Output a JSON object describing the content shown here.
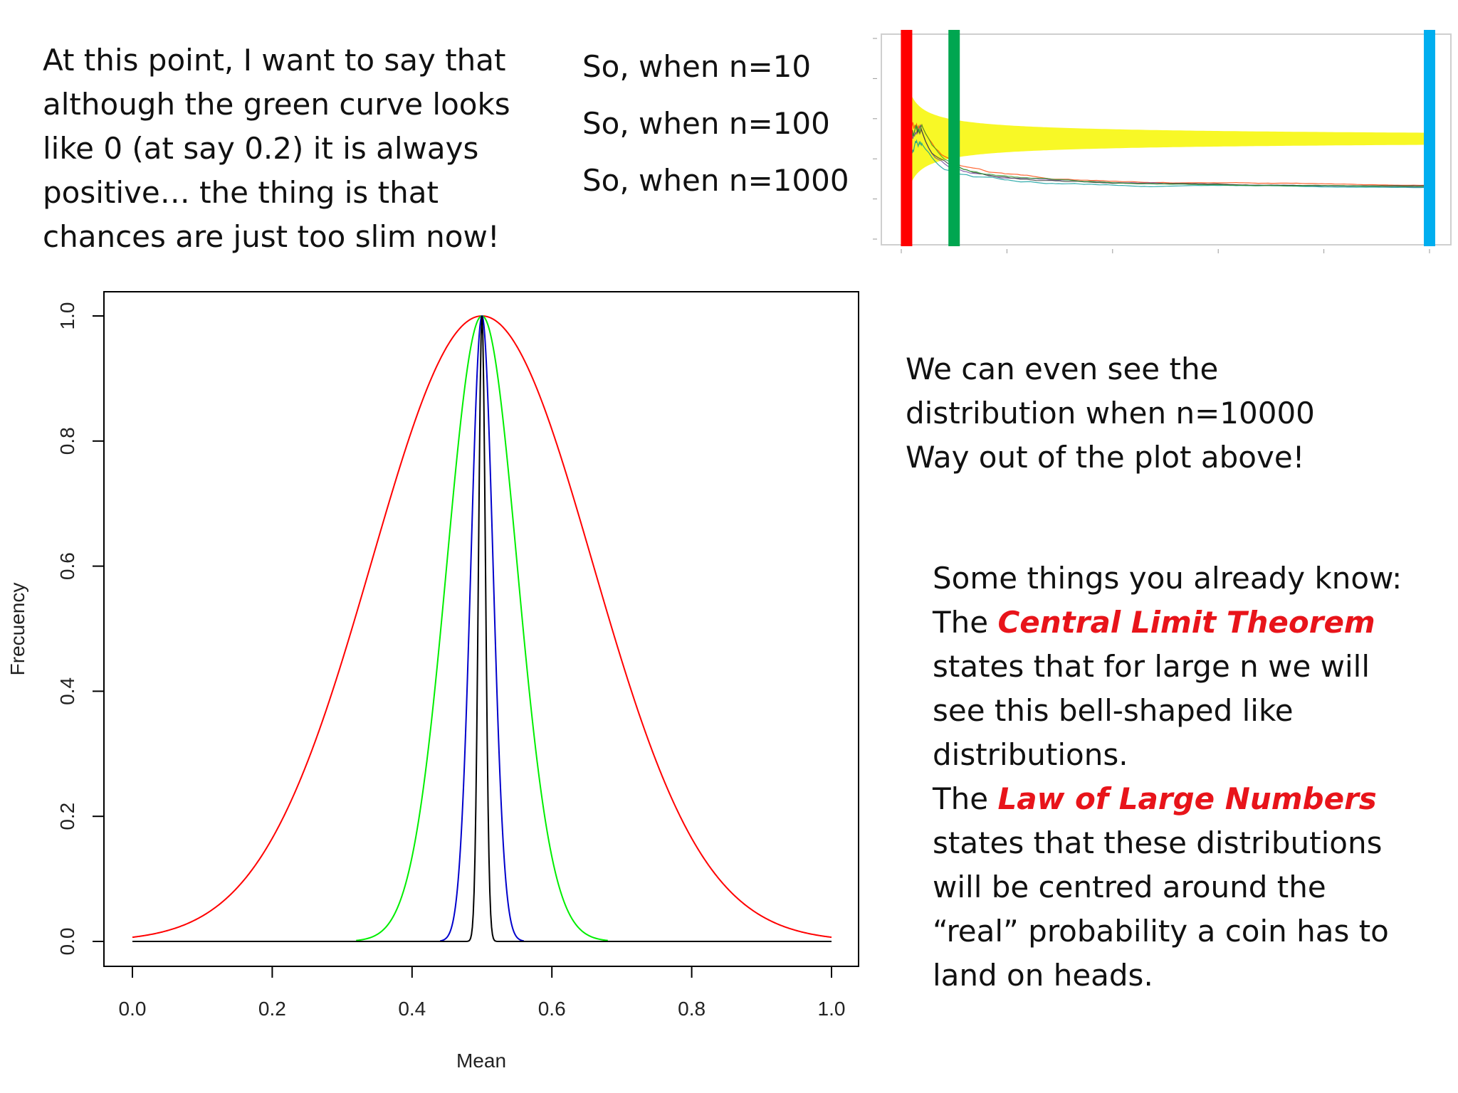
{
  "intro": {
    "lines": [
      "At this point, I want to say that",
      "although the green curve looks",
      "like 0 (at say 0.2) it is always",
      "positive… the thing is that",
      "chances are just too slim now!"
    ]
  },
  "n_list": [
    "So, when n=10",
    "So, when n=100",
    "So, when n=1000"
  ],
  "n10000": {
    "lines": [
      "We can even see the",
      "distribution when n=10000",
      "Way out of the plot above!"
    ]
  },
  "summary": {
    "line1": "Some things you already know:",
    "clt_prefix": "The ",
    "clt_term": "Central Limit Theorem",
    "clt_lines": [
      "states that for large n we will",
      "see this bell-shaped like",
      "distributions."
    ],
    "lln_prefix": "The ",
    "lln_term": "Law of Large Numbers",
    "lln_lines": [
      "states that these distributions",
      "will be centred around the",
      "“real” probability a coin has to",
      "land on heads."
    ]
  },
  "colors": {
    "highlight": "#e8141a"
  },
  "chart_data": [
    {
      "type": "line",
      "title": "",
      "xlabel": "Mean",
      "ylabel": "Frecuency",
      "xlim": [
        0,
        1
      ],
      "ylim": [
        0,
        1
      ],
      "xticks": [
        "0.0",
        "0.2",
        "0.4",
        "0.6",
        "0.8",
        "1.0"
      ],
      "yticks": [
        "0.0",
        "0.2",
        "0.4",
        "0.6",
        "0.8",
        "1.0"
      ],
      "grid": false,
      "series": [
        {
          "color": "#ff0000",
          "center": 0.5,
          "sd": 0.158,
          "x_range": [
            0,
            1
          ]
        },
        {
          "color": "#00ee00",
          "center": 0.5,
          "sd": 0.05,
          "x_range": [
            0.32,
            0.68
          ]
        },
        {
          "color": "#0000cc",
          "center": 0.5,
          "sd": 0.0158,
          "x_range": [
            0.44,
            0.56
          ]
        },
        {
          "color": "#000000",
          "center": 0.5,
          "sd": 0.005,
          "x_range": [
            0,
            1
          ]
        }
      ]
    },
    {
      "type": "line",
      "title": "",
      "xlabel": "",
      "ylabel": "",
      "xlim": [
        0,
        1000
      ],
      "ylim": [
        0,
        1
      ],
      "center": 0.5,
      "band_color": "#f7f700",
      "markers": [
        {
          "label": "n=10",
          "x": 10,
          "color": "#ff0000"
        },
        {
          "label": "n=100",
          "x": 100,
          "color": "#00a650"
        },
        {
          "label": "n=1000",
          "x": 1000,
          "color": "#00aeef"
        }
      ]
    }
  ]
}
